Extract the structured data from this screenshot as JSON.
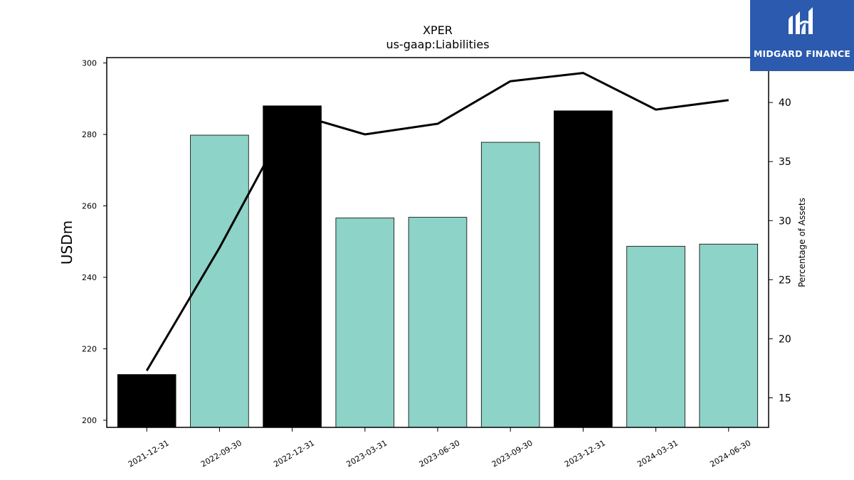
{
  "chart_data": {
    "type": "bar",
    "title": "XPER",
    "subtitle": "us-gaap:Liabilities",
    "ylabel": "USDm",
    "y2label": "Percentage of Assets",
    "categories": [
      "2021-12-31",
      "2022-09-30",
      "2022-12-31",
      "2023-03-31",
      "2023-06-30",
      "2023-09-30",
      "2023-12-31",
      "2024-03-31",
      "2024-06-30"
    ],
    "series": [
      {
        "type": "bar",
        "axis": "left",
        "values": [
          212.8,
          279.8,
          288.0,
          256.6,
          256.8,
          277.8,
          286.6,
          248.7,
          249.3
        ],
        "colors": [
          "#000000",
          "#8dd3c7",
          "#000000",
          "#8dd3c7",
          "#8dd3c7",
          "#8dd3c7",
          "#000000",
          "#8dd3c7",
          "#8dd3c7"
        ]
      },
      {
        "type": "line",
        "axis": "right",
        "color": "#000000",
        "values": [
          17.3,
          27.7,
          39.1,
          37.3,
          38.2,
          41.8,
          42.5,
          39.4,
          40.2
        ]
      }
    ],
    "ylim": [
      198,
      301.5
    ],
    "yticks": [
      200,
      220,
      240,
      260,
      280,
      300
    ],
    "y2lim": [
      12.5,
      43.8
    ],
    "y2ticks": [
      15,
      20,
      25,
      30,
      35,
      40
    ],
    "grid": false,
    "legend": "none"
  },
  "logo": {
    "text": "MIDGARD FINANCE",
    "color": "#2b5aae"
  }
}
